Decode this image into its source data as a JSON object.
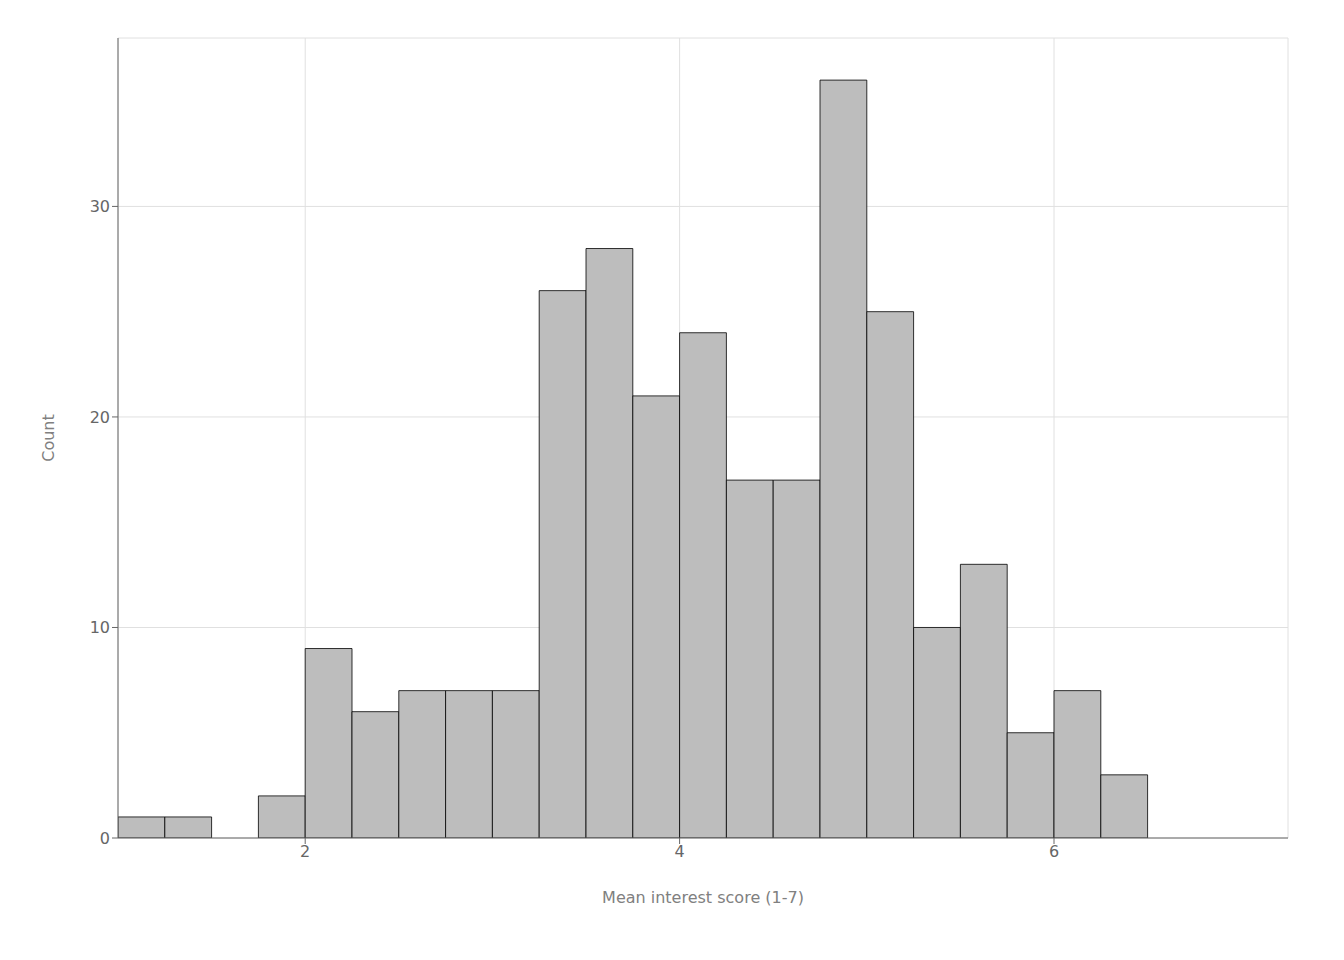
{
  "chart_data": {
    "type": "histogram",
    "xlabel": "Mean interest score (1-7)",
    "ylabel": "Count",
    "bins": [
      1.0,
      1.25,
      1.5,
      1.75,
      2.0,
      2.25,
      2.5,
      2.75,
      3.0,
      3.25,
      3.5,
      3.75,
      4.0,
      4.25,
      4.5,
      4.75,
      5.0,
      5.25,
      5.5,
      5.75,
      6.0,
      6.25,
      6.5,
      6.75,
      7.0
    ],
    "values": [
      1,
      1,
      0,
      2,
      9,
      6,
      7,
      7,
      7,
      26,
      28,
      21,
      24,
      17,
      17,
      36,
      25,
      10,
      13,
      5,
      7,
      3,
      0,
      0
    ],
    "color": "#bdbdbd",
    "xlim": [
      1.0,
      7.25
    ],
    "ylim": [
      0,
      38
    ],
    "xticks": [
      2,
      4,
      6
    ],
    "yticks": [
      0,
      10,
      20,
      30
    ],
    "grid": true
  }
}
